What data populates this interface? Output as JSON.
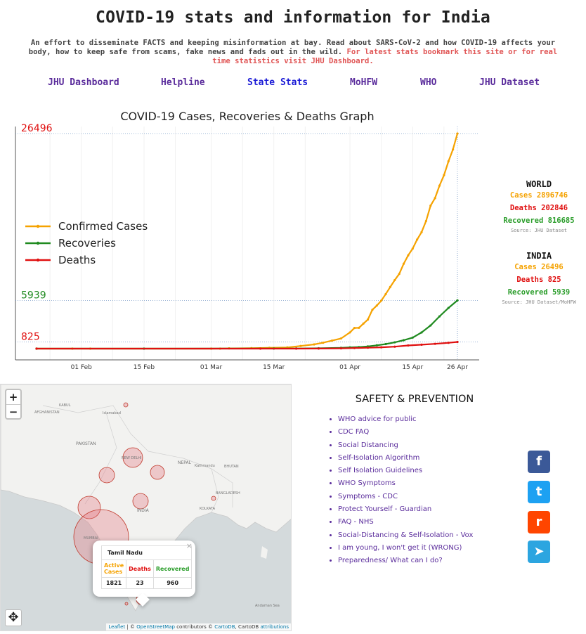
{
  "page": {
    "title": "COVID-19 stats and information for India",
    "intro_main": "An effort to disseminate FACTS and keeping misinformation at bay. Read about SARS-CoV-2 and how COVID-19 affects your body, how to keep safe from scams, fake news and fads out in the wild.",
    "intro_highlight": "For latest stats bookmark this site or for real time statistics visit JHU Dashboard."
  },
  "nav": [
    {
      "label": "JHU Dashboard"
    },
    {
      "label": "Helpline"
    },
    {
      "label": "State Stats",
      "active": true
    },
    {
      "label": "MoHFW"
    },
    {
      "label": "WHO"
    },
    {
      "label": "JHU Dataset"
    }
  ],
  "chart_data": {
    "type": "line",
    "title": "COVID-19 Cases, Recoveries & Deaths Graph",
    "xlabel": "",
    "ylabel": "",
    "x_start": "2020-01-22",
    "x_end": "2020-04-25",
    "x_ticks": [
      "01 Feb",
      "15 Feb",
      "01 Mar",
      "15 Mar",
      "01 Apr",
      "15 Apr",
      "26 Apr"
    ],
    "ylim": [
      0,
      26496
    ],
    "y_annotations": [
      {
        "value": 26496,
        "label": "26496",
        "color": "#e01010"
      },
      {
        "value": 5939,
        "label": "5939",
        "color": "#1f8a1f"
      },
      {
        "value": 825,
        "label": "825",
        "color": "#e01010"
      }
    ],
    "legend_position": "left",
    "grid": true,
    "series": [
      {
        "name": "Confirmed Cases",
        "color": "#f5a200",
        "points": [
          [
            "2020-01-22",
            0
          ],
          [
            "2020-01-30",
            1
          ],
          [
            "2020-02-03",
            3
          ],
          [
            "2020-03-01",
            3
          ],
          [
            "2020-03-03",
            5
          ],
          [
            "2020-03-05",
            30
          ],
          [
            "2020-03-10",
            56
          ],
          [
            "2020-03-14",
            102
          ],
          [
            "2020-03-18",
            151
          ],
          [
            "2020-03-21",
            330
          ],
          [
            "2020-03-24",
            519
          ],
          [
            "2020-03-26",
            727
          ],
          [
            "2020-03-28",
            987
          ],
          [
            "2020-03-30",
            1251
          ],
          [
            "2020-04-01",
            1998
          ],
          [
            "2020-04-02",
            2543
          ],
          [
            "2020-04-03",
            2567
          ],
          [
            "2020-04-04",
            3082
          ],
          [
            "2020-04-05",
            3588
          ],
          [
            "2020-04-06",
            4778
          ],
          [
            "2020-04-07",
            5311
          ],
          [
            "2020-04-08",
            5916
          ],
          [
            "2020-04-09",
            6725
          ],
          [
            "2020-04-10",
            7598
          ],
          [
            "2020-04-11",
            8446
          ],
          [
            "2020-04-12",
            9205
          ],
          [
            "2020-04-13",
            10453
          ],
          [
            "2020-04-14",
            11487
          ],
          [
            "2020-04-15",
            12322
          ],
          [
            "2020-04-16",
            13430
          ],
          [
            "2020-04-17",
            14352
          ],
          [
            "2020-04-18",
            15722
          ],
          [
            "2020-04-19",
            17615
          ],
          [
            "2020-04-20",
            18539
          ],
          [
            "2020-04-21",
            20080
          ],
          [
            "2020-04-22",
            21370
          ],
          [
            "2020-04-23",
            23077
          ],
          [
            "2020-04-24",
            24530
          ],
          [
            "2020-04-25",
            26496
          ]
        ]
      },
      {
        "name": "Recoveries",
        "color": "#1f8a1f",
        "points": [
          [
            "2020-01-22",
            0
          ],
          [
            "2020-02-15",
            3
          ],
          [
            "2020-03-15",
            10
          ],
          [
            "2020-03-20",
            20
          ],
          [
            "2020-03-25",
            42
          ],
          [
            "2020-03-30",
            102
          ],
          [
            "2020-04-01",
            155
          ],
          [
            "2020-04-03",
            191
          ],
          [
            "2020-04-05",
            274
          ],
          [
            "2020-04-07",
            411
          ],
          [
            "2020-04-09",
            562
          ],
          [
            "2020-04-11",
            774
          ],
          [
            "2020-04-13",
            1036
          ],
          [
            "2020-04-15",
            1359
          ],
          [
            "2020-04-17",
            1991
          ],
          [
            "2020-04-19",
            2854
          ],
          [
            "2020-04-21",
            3975
          ],
          [
            "2020-04-23",
            5012
          ],
          [
            "2020-04-25",
            5939
          ]
        ]
      },
      {
        "name": "Deaths",
        "color": "#e01010",
        "points": [
          [
            "2020-01-22",
            0
          ],
          [
            "2020-03-12",
            1
          ],
          [
            "2020-03-20",
            4
          ],
          [
            "2020-03-25",
            10
          ],
          [
            "2020-03-30",
            32
          ],
          [
            "2020-04-02",
            72
          ],
          [
            "2020-04-05",
            114
          ],
          [
            "2020-04-08",
            166
          ],
          [
            "2020-04-11",
            242
          ],
          [
            "2020-04-14",
            392
          ],
          [
            "2020-04-17",
            486
          ],
          [
            "2020-04-20",
            592
          ],
          [
            "2020-04-23",
            718
          ],
          [
            "2020-04-25",
            825
          ]
        ]
      }
    ]
  },
  "world": {
    "heading": "WORLD",
    "cases": "Cases 2896746",
    "deaths": "Deaths 202846",
    "recovered": "Recovered 816685",
    "source": "Source: JHU Dataset"
  },
  "india": {
    "heading": "INDIA",
    "cases": "Cases 26496",
    "deaths": "Deaths 825",
    "recovered": "Recovered 5939",
    "source": "Source: JHU Dataset/MoHFW"
  },
  "map": {
    "zoom_in": "+",
    "zoom_out": "−",
    "popup": {
      "close": "×",
      "state": "Tamil Nadu",
      "col_active": "Active Cases",
      "col_deaths": "Deaths",
      "col_recovered": "Recovered",
      "active": "1821",
      "deaths": "23",
      "recovered": "960"
    },
    "attribution": {
      "leaflet": "Leaflet",
      "sep1": " | © ",
      "osm": "OpenStreetMap",
      "mid": " contributors © ",
      "carto": "CartoDB",
      "sep2": ", CartoDB ",
      "attr": "attributions"
    },
    "labels": {
      "kabul": "KABUL",
      "afghanistan": "AFGHANISTAN",
      "islamabad": "Islamabad",
      "pakistan": "PAKISTAN",
      "new_delhi": "NEW DELHI",
      "nepal": "NEPAL",
      "kathmandu": "Kathmandu",
      "bhutan": "BHUTAN",
      "bangladesh": "BANGLADESH",
      "india": "INDIA",
      "kolkata": "KOLKATA",
      "mumbai": "MUMBAI",
      "andaman": "Andaman Sea"
    },
    "move_icon": "move-arrows-icon"
  },
  "safety": {
    "heading": "SAFETY & PREVENTION",
    "links": [
      "WHO advice for public",
      "CDC FAQ",
      "Social Distancing",
      "Self-Isolation Algorithm",
      "Self Isolation Guidelines",
      "WHO Symptoms",
      "Symptoms - CDC",
      "Protect Yourself - Guardian",
      "FAQ - NHS",
      "Social-Distancing & Self-Isolation - Vox",
      "I am young, I won't get it (WRONG)",
      "Preparedness/ What can I do?"
    ]
  },
  "share": [
    {
      "icon": "facebook-icon",
      "glyph": "f",
      "color": "#3b5998"
    },
    {
      "icon": "twitter-icon",
      "glyph": "t",
      "color": "#1da1f2"
    },
    {
      "icon": "reddit-icon",
      "glyph": "r",
      "color": "#ff4500"
    },
    {
      "icon": "telegram-icon",
      "glyph": "➤",
      "color": "#2ca5e0"
    }
  ]
}
